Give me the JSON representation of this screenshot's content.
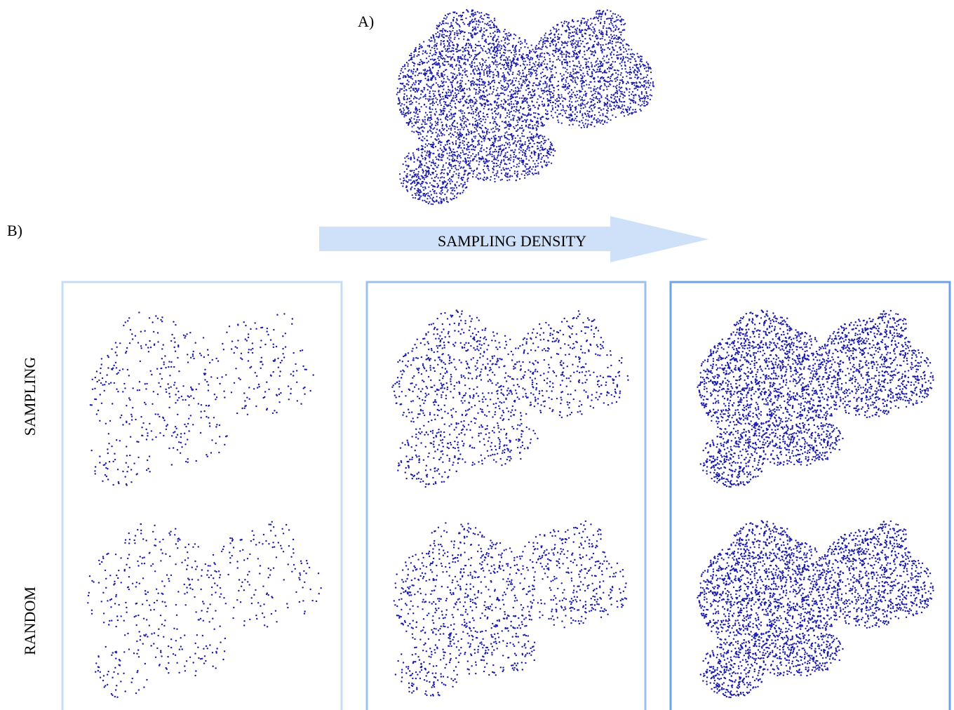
{
  "figure": {
    "panel_a_label": "A)",
    "panel_b_label": "B)",
    "arrow_label": "SAMPLING DENSITY",
    "row_labels": [
      "SAMPLING",
      "RANDOM"
    ]
  }
}
